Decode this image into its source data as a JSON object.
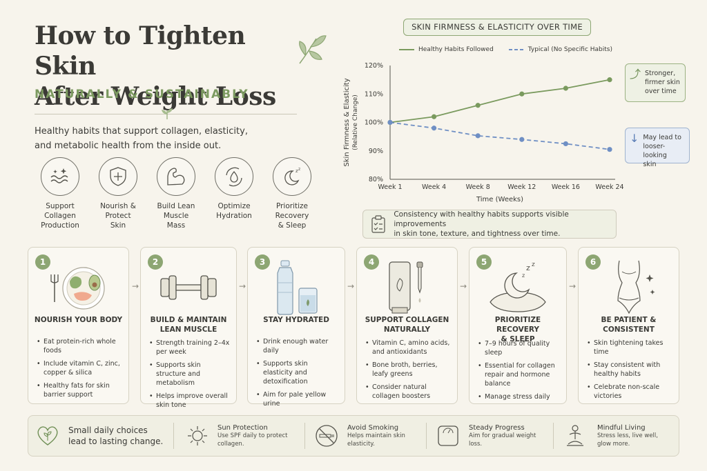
{
  "header": {
    "title_line1": "How to Tighten Skin",
    "title_line2": "After Weight Loss",
    "subtitle": "NATURALLY & SUSTAINABLY",
    "intro_line1": "Healthy habits that support collagen, elasticity,",
    "intro_line2": "and metabolic health from the inside out."
  },
  "benefits": [
    {
      "icon": "sparkle-waves-icon",
      "line1": "Support",
      "line2": "Collagen",
      "line3": "Production"
    },
    {
      "icon": "shield-plus-icon",
      "line1": "Nourish &",
      "line2": "Protect",
      "line3": "Skin"
    },
    {
      "icon": "flexed-arm-icon",
      "line1": "Build Lean",
      "line2": "Muscle",
      "line3": "Mass"
    },
    {
      "icon": "water-cycle-icon",
      "line1": "Optimize",
      "line2": "Hydration",
      "line3": ""
    },
    {
      "icon": "moon-zzz-icon",
      "line1": "Prioritize",
      "line2": "Recovery",
      "line3": "& Sleep"
    }
  ],
  "chart_data": {
    "type": "line",
    "title": "SKIN FIRMNESS & ELASTICITY OVER TIME",
    "xlabel": "Time (Weeks)",
    "ylabel": "Skin Firmness & Elasticity",
    "ylabel2": "(Relative Change)",
    "categories": [
      "Week 1",
      "Week 4",
      "Week 8",
      "Week 12",
      "Week 16",
      "Week 24"
    ],
    "y_ticks": [
      "80%",
      "90%",
      "100%",
      "110%",
      "120%"
    ],
    "ylim": [
      80,
      120
    ],
    "series": [
      {
        "name": "Healthy Habits Followed",
        "color": "#7a9a5e",
        "style": "solid",
        "values": [
          100,
          102,
          106,
          110,
          112,
          115
        ]
      },
      {
        "name": "Typical (No Specific Habits)",
        "color": "#6f8fc4",
        "style": "dashed",
        "values": [
          100,
          98,
          95.3,
          94,
          92.5,
          90.5
        ]
      }
    ],
    "legend_placement": "top",
    "grid": false
  },
  "callouts": {
    "up": {
      "line1": "Stronger,",
      "line2": "firmer skin",
      "line3": "over time"
    },
    "down": {
      "line1": "May lead to",
      "line2": "looser-looking",
      "line3": "skin"
    }
  },
  "consistency": {
    "line1": "Consistency with healthy habits supports visible improvements",
    "line2": "in skin tone, texture, and tightness over time."
  },
  "steps": [
    {
      "num": "1",
      "head1": "NOURISH YOUR BODY",
      "head2": "",
      "bullets": [
        "Eat protein-rich whole foods",
        "Include vitamin C, zinc, copper & silica",
        "Healthy fats for skin barrier support"
      ]
    },
    {
      "num": "2",
      "head1": "BUILD & MAINTAIN",
      "head2": "LEAN MUSCLE",
      "bullets": [
        "Strength training 2–4x per week",
        "Supports skin structure and metabolism",
        "Helps improve overall skin tone"
      ]
    },
    {
      "num": "3",
      "head1": "STAY HYDRATED",
      "head2": "",
      "bullets": [
        "Drink enough water daily",
        "Supports skin elasticity and detoxification",
        "Aim for pale yellow urine"
      ]
    },
    {
      "num": "4",
      "head1": "SUPPORT COLLAGEN",
      "head2": "NATURALLY",
      "bullets": [
        "Vitamin C, amino acids, and antioxidants",
        "Bone broth, berries, leafy greens",
        "Consider natural collagen boosters"
      ]
    },
    {
      "num": "5",
      "head1": "PRIORITIZE RECOVERY",
      "head2": "& SLEEP",
      "bullets": [
        "7–9 hours of quality sleep",
        "Essential for collagen repair and hormone balance",
        "Manage stress daily"
      ]
    },
    {
      "num": "6",
      "head1": "BE PATIENT & CONSISTENT",
      "head2": "",
      "bullets": [
        "Skin tightening takes time",
        "Stay consistent with healthy habits",
        "Celebrate non-scale victories"
      ]
    }
  ],
  "footer": {
    "motto_line1": "Small daily choices",
    "motto_line2": "lead to lasting change.",
    "tips": [
      {
        "icon": "sun-icon",
        "title": "Sun Protection",
        "line1": "Use SPF daily to protect",
        "line2": "collagen."
      },
      {
        "icon": "no-smoking-icon",
        "title": "Avoid Smoking",
        "line1": "Helps maintain skin",
        "line2": "elasticity."
      },
      {
        "icon": "scale-icon",
        "title": "Steady Progress",
        "line1": "Aim for gradual weight",
        "line2": "loss."
      },
      {
        "icon": "meditation-icon",
        "title": "Mindful Living",
        "line1": "Stress less, live well,",
        "line2": "glow more."
      }
    ]
  }
}
